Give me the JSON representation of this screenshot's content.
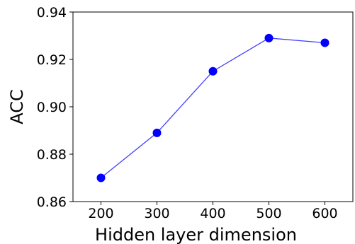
{
  "chart_data": {
    "type": "line",
    "title": "",
    "xlabel": "Hidden layer dimension",
    "ylabel": "ACC",
    "x": [
      200,
      300,
      400,
      500,
      600
    ],
    "series": [
      {
        "name": "",
        "values": [
          0.87,
          0.889,
          0.915,
          0.929,
          0.927
        ],
        "color": "#4040ff",
        "marker_color": "#0000ff"
      }
    ],
    "xticks": [
      200,
      300,
      400,
      500,
      600
    ],
    "xtick_labels": [
      "200",
      "300",
      "400",
      "500",
      "600"
    ],
    "yticks": [
      0.86,
      0.88,
      0.9,
      0.92,
      0.94
    ],
    "ytick_labels": [
      "0.86",
      "0.88",
      "0.90",
      "0.92",
      "0.94"
    ],
    "xlim": [
      150,
      650
    ],
    "ylim": [
      0.86,
      0.94
    ],
    "grid": false,
    "legend": "none"
  }
}
